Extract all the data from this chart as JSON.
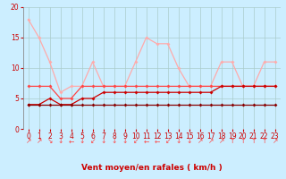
{
  "xlabel": "Vent moyen/en rafales ( km/h )",
  "bg_color": "#cceeff",
  "grid_color": "#aacccc",
  "xlim": [
    -0.5,
    23.5
  ],
  "ylim": [
    0,
    20
  ],
  "yticks": [
    0,
    5,
    10,
    15,
    20
  ],
  "xticks": [
    0,
    1,
    2,
    3,
    4,
    5,
    6,
    7,
    8,
    9,
    10,
    11,
    12,
    13,
    14,
    15,
    16,
    17,
    18,
    19,
    20,
    21,
    22,
    23
  ],
  "x": [
    0,
    1,
    2,
    3,
    4,
    5,
    6,
    7,
    8,
    9,
    10,
    11,
    12,
    13,
    14,
    15,
    16,
    17,
    18,
    19,
    20,
    21,
    22,
    23
  ],
  "series": [
    {
      "y": [
        18,
        15,
        11,
        6,
        7,
        7,
        11,
        7,
        7,
        7,
        11,
        15,
        14,
        14,
        10,
        7,
        7,
        7,
        11,
        11,
        7,
        7,
        11,
        11
      ],
      "color": "#ffaaaa",
      "lw": 0.9,
      "marker": "D",
      "ms": 2.0
    },
    {
      "y": [
        7,
        7,
        7,
        5,
        5,
        7,
        7,
        7,
        7,
        7,
        7,
        7,
        7,
        7,
        7,
        7,
        7,
        7,
        7,
        7,
        7,
        7,
        7,
        7
      ],
      "color": "#ff4444",
      "lw": 0.9,
      "marker": "D",
      "ms": 2.0
    },
    {
      "y": [
        4,
        4,
        5,
        4,
        4,
        5,
        5,
        6,
        6,
        6,
        6,
        6,
        6,
        6,
        6,
        6,
        6,
        6,
        7,
        7,
        7,
        7,
        7,
        7
      ],
      "color": "#cc0000",
      "lw": 0.9,
      "marker": "D",
      "ms": 2.0
    },
    {
      "y": [
        4,
        4,
        4,
        4,
        4,
        4,
        4,
        4,
        4,
        4,
        4,
        4,
        4,
        4,
        4,
        4,
        4,
        4,
        4,
        4,
        4,
        4,
        4,
        4
      ],
      "color": "#880000",
      "lw": 0.9,
      "marker": "D",
      "ms": 2.0
    }
  ],
  "xlabel_color": "#cc0000",
  "tick_color": "#cc0000",
  "xlabel_fontsize": 6.5,
  "tick_fontsize": 5.5,
  "arrows": [
    "↗",
    "↗",
    "↘",
    "↓",
    "←",
    "↓",
    "↙",
    "↓",
    "↓",
    "↓",
    "↙",
    "←",
    "←",
    "↙",
    "↓",
    "↓",
    "↗",
    "↗",
    "↗",
    "↑",
    "↑",
    "↑",
    "↑",
    "↗"
  ]
}
